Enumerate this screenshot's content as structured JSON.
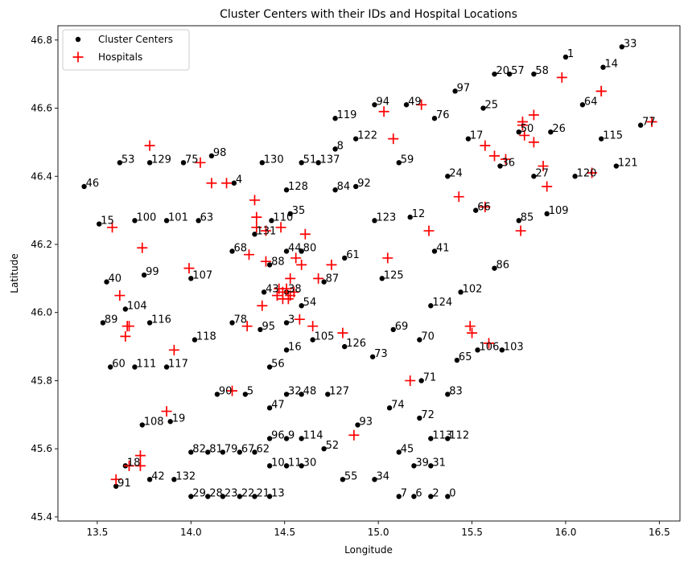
{
  "chart_data": {
    "type": "scatter",
    "title": "Cluster Centers with their IDs and Hospital Locations",
    "xlabel": "Longitude",
    "ylabel": "Latitude",
    "xlim": [
      13.29,
      16.61
    ],
    "ylim": [
      45.388,
      46.842
    ],
    "xticks": [
      "13.5",
      "14.0",
      "14.5",
      "15.0",
      "15.5",
      "16.0",
      "16.5"
    ],
    "yticks": [
      "45.4",
      "45.6",
      "45.8",
      "46.0",
      "46.2",
      "46.4",
      "46.6",
      "46.8"
    ],
    "grid": false,
    "legend": "top-left",
    "series": [
      {
        "name": "Cluster Centers",
        "color": "#000000",
        "marker": "dot",
        "points": [
          [
            16.0,
            46.75,
            "1"
          ],
          [
            16.3,
            46.78,
            "33"
          ],
          [
            16.2,
            46.72,
            "14"
          ],
          [
            15.62,
            46.7,
            "20"
          ],
          [
            15.7,
            46.7,
            "57"
          ],
          [
            15.83,
            46.7,
            "58"
          ],
          [
            15.41,
            46.65,
            "97"
          ],
          [
            14.98,
            46.61,
            "94"
          ],
          [
            15.15,
            46.61,
            "49"
          ],
          [
            15.56,
            46.6,
            "25"
          ],
          [
            16.09,
            46.61,
            "64"
          ],
          [
            14.77,
            46.57,
            "119"
          ],
          [
            15.3,
            46.57,
            "76"
          ],
          [
            16.4,
            46.55,
            "77"
          ],
          [
            15.75,
            46.53,
            "50"
          ],
          [
            15.92,
            46.53,
            "26"
          ],
          [
            14.88,
            46.51,
            "122"
          ],
          [
            15.48,
            46.51,
            "17"
          ],
          [
            16.19,
            46.51,
            "115"
          ],
          [
            14.77,
            46.48,
            "8"
          ],
          [
            13.62,
            46.44,
            "53"
          ],
          [
            13.78,
            46.44,
            "129"
          ],
          [
            13.96,
            46.44,
            "75"
          ],
          [
            14.11,
            46.46,
            "98"
          ],
          [
            14.38,
            46.44,
            "130"
          ],
          [
            14.59,
            46.44,
            "51"
          ],
          [
            14.68,
            46.44,
            "137"
          ],
          [
            15.11,
            46.44,
            "59"
          ],
          [
            15.65,
            46.43,
            "36"
          ],
          [
            16.27,
            46.43,
            "121"
          ],
          [
            15.37,
            46.4,
            "24"
          ],
          [
            15.83,
            46.4,
            "27"
          ],
          [
            16.05,
            46.4,
            "120"
          ],
          [
            13.43,
            46.37,
            "46"
          ],
          [
            14.23,
            46.38,
            "4"
          ],
          [
            14.51,
            46.36,
            "128"
          ],
          [
            14.77,
            46.36,
            "84"
          ],
          [
            14.88,
            46.37,
            "92"
          ],
          [
            15.52,
            46.3,
            "66"
          ],
          [
            15.9,
            46.29,
            "109"
          ],
          [
            14.53,
            46.29,
            "35"
          ],
          [
            13.51,
            46.26,
            "15"
          ],
          [
            13.7,
            46.27,
            "100"
          ],
          [
            13.87,
            46.27,
            "101"
          ],
          [
            14.04,
            46.27,
            "63"
          ],
          [
            14.43,
            46.27,
            "110"
          ],
          [
            14.98,
            46.27,
            "123"
          ],
          [
            15.17,
            46.28,
            "12"
          ],
          [
            15.75,
            46.27,
            "85"
          ],
          [
            14.34,
            46.23,
            "131"
          ],
          [
            14.22,
            46.18,
            "68"
          ],
          [
            14.51,
            46.18,
            "44"
          ],
          [
            14.59,
            46.18,
            "80"
          ],
          [
            15.3,
            46.18,
            "41"
          ],
          [
            14.82,
            46.16,
            "61"
          ],
          [
            14.42,
            46.14,
            "88"
          ],
          [
            15.62,
            46.13,
            "86"
          ],
          [
            13.75,
            46.11,
            "99"
          ],
          [
            14.0,
            46.1,
            "107"
          ],
          [
            15.02,
            46.1,
            "125"
          ],
          [
            14.71,
            46.09,
            "87"
          ],
          [
            13.55,
            46.09,
            "40"
          ],
          [
            15.44,
            46.06,
            "102"
          ],
          [
            14.39,
            46.06,
            "43"
          ],
          [
            14.51,
            46.06,
            "38"
          ],
          [
            13.65,
            46.01,
            "104"
          ],
          [
            15.28,
            46.02,
            "124"
          ],
          [
            14.59,
            46.02,
            "54"
          ],
          [
            13.53,
            45.97,
            "89"
          ],
          [
            13.78,
            45.97,
            "116"
          ],
          [
            14.22,
            45.97,
            "78"
          ],
          [
            14.51,
            45.97,
            "3"
          ],
          [
            14.37,
            45.95,
            "95"
          ],
          [
            15.08,
            45.95,
            "69"
          ],
          [
            14.02,
            45.92,
            "118"
          ],
          [
            14.65,
            45.92,
            "105"
          ],
          [
            15.22,
            45.92,
            "70"
          ],
          [
            14.82,
            45.9,
            "126"
          ],
          [
            15.53,
            45.89,
            "106"
          ],
          [
            15.66,
            45.89,
            "103"
          ],
          [
            14.51,
            45.89,
            "16"
          ],
          [
            14.97,
            45.87,
            "73"
          ],
          [
            15.42,
            45.86,
            "65"
          ],
          [
            13.57,
            45.84,
            "60"
          ],
          [
            13.7,
            45.84,
            "111"
          ],
          [
            13.87,
            45.84,
            "117"
          ],
          [
            14.42,
            45.84,
            "56"
          ],
          [
            15.23,
            45.8,
            "71"
          ],
          [
            14.14,
            45.76,
            "90"
          ],
          [
            14.29,
            45.76,
            "5"
          ],
          [
            14.51,
            45.76,
            "32"
          ],
          [
            14.59,
            45.76,
            "48"
          ],
          [
            14.73,
            45.76,
            "127"
          ],
          [
            15.37,
            45.76,
            "83"
          ],
          [
            14.42,
            45.72,
            "47"
          ],
          [
            15.06,
            45.72,
            "74"
          ],
          [
            15.22,
            45.69,
            "72"
          ],
          [
            13.74,
            45.67,
            "108"
          ],
          [
            13.89,
            45.68,
            "19"
          ],
          [
            14.89,
            45.67,
            "93"
          ],
          [
            14.42,
            45.63,
            "96"
          ],
          [
            14.51,
            45.63,
            "9"
          ],
          [
            14.59,
            45.63,
            "114"
          ],
          [
            15.28,
            45.63,
            "113"
          ],
          [
            15.37,
            45.63,
            "112"
          ],
          [
            14.0,
            45.59,
            "82"
          ],
          [
            14.09,
            45.59,
            "81"
          ],
          [
            14.17,
            45.59,
            "79"
          ],
          [
            14.26,
            45.59,
            "67"
          ],
          [
            14.34,
            45.59,
            "62"
          ],
          [
            14.71,
            45.6,
            "52"
          ],
          [
            15.11,
            45.59,
            "45"
          ],
          [
            15.19,
            45.55,
            "39"
          ],
          [
            15.28,
            45.55,
            "31"
          ],
          [
            14.42,
            45.55,
            "10"
          ],
          [
            14.51,
            45.55,
            "11"
          ],
          [
            14.59,
            45.55,
            "30"
          ],
          [
            13.65,
            45.55,
            "18"
          ],
          [
            13.6,
            45.49,
            "91"
          ],
          [
            13.78,
            45.51,
            "42"
          ],
          [
            13.91,
            45.51,
            "132"
          ],
          [
            14.81,
            45.51,
            "55"
          ],
          [
            14.98,
            45.51,
            "34"
          ],
          [
            15.11,
            45.46,
            "7"
          ],
          [
            15.19,
            45.46,
            "6"
          ],
          [
            15.28,
            45.46,
            "2"
          ],
          [
            15.37,
            45.46,
            "0"
          ],
          [
            14.0,
            45.46,
            "29"
          ],
          [
            14.09,
            45.46,
            "28"
          ],
          [
            14.17,
            45.46,
            "23"
          ],
          [
            14.26,
            45.46,
            "22"
          ],
          [
            14.34,
            45.46,
            "21"
          ],
          [
            14.42,
            45.46,
            "13"
          ]
        ]
      },
      {
        "name": "Hospitals",
        "color": "#ff0000",
        "marker": "plus",
        "points": [
          [
            15.98,
            46.69
          ],
          [
            16.19,
            46.65
          ],
          [
            16.19,
            46.65
          ],
          [
            15.23,
            46.61
          ],
          [
            15.03,
            46.59
          ],
          [
            15.83,
            46.58
          ],
          [
            15.77,
            46.56
          ],
          [
            15.77,
            46.55
          ],
          [
            15.78,
            46.52
          ],
          [
            15.83,
            46.5
          ],
          [
            16.46,
            46.56
          ],
          [
            15.08,
            46.51
          ],
          [
            13.78,
            46.49
          ],
          [
            15.57,
            46.49
          ],
          [
            15.62,
            46.46
          ],
          [
            14.05,
            46.44
          ],
          [
            15.68,
            46.45
          ],
          [
            15.88,
            46.43
          ],
          [
            15.9,
            46.37
          ],
          [
            16.14,
            46.41
          ],
          [
            14.11,
            46.38
          ],
          [
            14.19,
            46.38
          ],
          [
            14.34,
            46.33
          ],
          [
            15.43,
            46.34
          ],
          [
            15.57,
            46.31
          ],
          [
            14.35,
            46.28
          ],
          [
            14.35,
            46.25
          ],
          [
            14.48,
            46.25
          ],
          [
            13.58,
            46.25
          ],
          [
            14.4,
            46.24
          ],
          [
            15.27,
            46.24
          ],
          [
            15.76,
            46.24
          ],
          [
            14.61,
            46.23
          ],
          [
            13.74,
            46.19
          ],
          [
            14.31,
            46.17
          ],
          [
            15.05,
            46.16
          ],
          [
            14.56,
            46.16
          ],
          [
            14.75,
            46.14
          ],
          [
            14.4,
            46.15
          ],
          [
            14.59,
            46.14
          ],
          [
            13.99,
            46.13
          ],
          [
            14.53,
            46.1
          ],
          [
            14.68,
            46.1
          ],
          [
            13.62,
            46.05
          ],
          [
            14.47,
            46.07
          ],
          [
            14.49,
            46.06
          ],
          [
            14.51,
            46.07
          ],
          [
            14.53,
            46.05
          ],
          [
            14.55,
            46.06
          ],
          [
            14.49,
            46.04
          ],
          [
            14.52,
            46.04
          ],
          [
            14.46,
            46.05
          ],
          [
            14.38,
            46.02
          ],
          [
            14.58,
            45.98
          ],
          [
            14.3,
            45.96
          ],
          [
            14.65,
            45.96
          ],
          [
            13.66,
            45.96
          ],
          [
            13.67,
            45.96
          ],
          [
            13.65,
            45.93
          ],
          [
            15.49,
            45.96
          ],
          [
            15.5,
            45.94
          ],
          [
            14.81,
            45.94
          ],
          [
            15.59,
            45.91
          ],
          [
            13.91,
            45.89
          ],
          [
            15.17,
            45.8
          ],
          [
            14.22,
            45.77
          ],
          [
            13.87,
            45.71
          ],
          [
            14.87,
            45.64
          ],
          [
            13.73,
            45.58
          ],
          [
            13.67,
            45.55
          ],
          [
            13.73,
            45.55
          ],
          [
            13.6,
            45.51
          ]
        ]
      }
    ]
  }
}
